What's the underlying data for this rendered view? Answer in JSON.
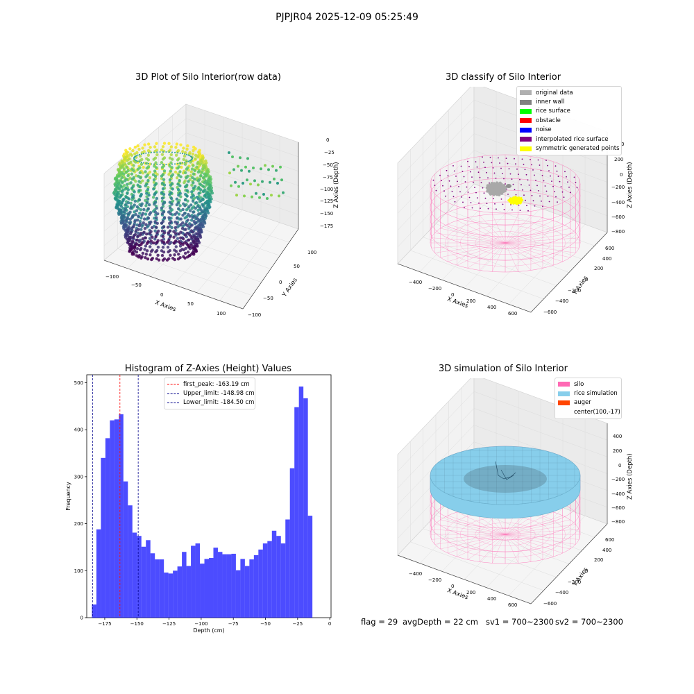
{
  "figure": {
    "suptitle": "PJPJR04 2025-12-09 05:25:49"
  },
  "panel_raw": {
    "title": "3D Plot of Silo Interior(row data)",
    "xlabel": "X Axies",
    "ylabel": "Y Axies",
    "zlabel": "Z Axies (Depth)",
    "x_ticks": [
      "−100",
      "−50",
      "0",
      "50",
      "100"
    ],
    "y_ticks": [
      "−100",
      "−50",
      "0",
      "50",
      "100"
    ],
    "z_ticks": [
      "0",
      "−25",
      "−50",
      "−75",
      "−100",
      "−125",
      "−150",
      "−175"
    ]
  },
  "panel_classify": {
    "title": "3D classify of Silo Interior",
    "xlabel": "X Axies",
    "ylabel": "Y Axies",
    "zlabel": "Z Axies (Depth)",
    "x_ticks": [
      "−400",
      "−200",
      "0",
      "200",
      "400",
      "600"
    ],
    "y_ticks": [
      "−600",
      "−400",
      "−200",
      "0",
      "200",
      "400",
      "600"
    ],
    "z_ticks": [
      "200",
      "0",
      "−200",
      "−400",
      "−600",
      "−800"
    ],
    "z_top_partial": "0",
    "legend": [
      {
        "label": "original data",
        "color": "#b0b0b0"
      },
      {
        "label": "inner wall",
        "color": "#808080"
      },
      {
        "label": "rice surface",
        "color": "#00ff00"
      },
      {
        "label": "obstacle",
        "color": "#ff0000"
      },
      {
        "label": "noise",
        "color": "#0000ff"
      },
      {
        "label": "interpolated rice surface",
        "color": "#800080"
      },
      {
        "label": "symmetric generated points",
        "color": "#ffff00"
      }
    ]
  },
  "panel_sim": {
    "title": "3D simulation of Silo Interior",
    "xlabel": "X Axies",
    "ylabel": "Y Axies",
    "zlabel": "Z Axies (Depth)",
    "x_ticks": [
      "−400",
      "−200",
      "0",
      "200",
      "400",
      "600"
    ],
    "y_ticks": [
      "−600",
      "−400",
      "−200",
      "0",
      "200",
      "400",
      "600"
    ],
    "z_ticks": [
      "400",
      "200",
      "0",
      "−200",
      "−400",
      "−600",
      "−800"
    ],
    "legend": [
      {
        "label": "silo",
        "color": "#ff69b4"
      },
      {
        "label": "rice simulation",
        "color": "#87ceeb"
      },
      {
        "label": "auger",
        "color": "#ff4500"
      },
      {
        "label": "center(100,-17)",
        "color": ""
      }
    ]
  },
  "chart_data": {
    "type": "bar",
    "title": "Histogram of Z-Axies (Height) Values",
    "xlabel": "Depth (cm)",
    "ylabel": "Frequency",
    "xlim": [
      -189,
      1
    ],
    "ylim": [
      0,
      517
    ],
    "x_ticks": [
      -175,
      -150,
      -125,
      -100,
      -75,
      -50,
      -25,
      0
    ],
    "x_tick_labels": [
      "−175",
      "−150",
      "−125",
      "−100",
      "−75",
      "−50",
      "−25",
      "0"
    ],
    "y_ticks": [
      0,
      100,
      200,
      300,
      400,
      500
    ],
    "bar_color": "#0000ff",
    "bin_width": 3.5,
    "bin_start": -185,
    "values": [
      28,
      188,
      340,
      382,
      420,
      422,
      433,
      290,
      239,
      181,
      174,
      151,
      165,
      137,
      124,
      124,
      96,
      94,
      100,
      109,
      140,
      110,
      153,
      158,
      115,
      125,
      127,
      149,
      140,
      135,
      135,
      136,
      101,
      125,
      110,
      124,
      133,
      145,
      158,
      163,
      185,
      174,
      158,
      209,
      318,
      448,
      492,
      467,
      217
    ],
    "vlines": [
      {
        "label": "first_peak: -163.19 cm",
        "x": -163.19,
        "color": "#ff0000"
      },
      {
        "label": "Upper_limit: -148.98 cm",
        "x": -148.98,
        "color": "#00008b"
      },
      {
        "label": "Lower_limit: -184.50 cm",
        "x": -184.5,
        "color": "#00008b"
      }
    ],
    "legend_position": "top-center"
  },
  "status": {
    "flag": "flag = 29",
    "avg_depth": "avgDepth = 22 cm",
    "sv1": "sv1 = 700~2300",
    "sv2": "sv2 = 700~2300"
  }
}
